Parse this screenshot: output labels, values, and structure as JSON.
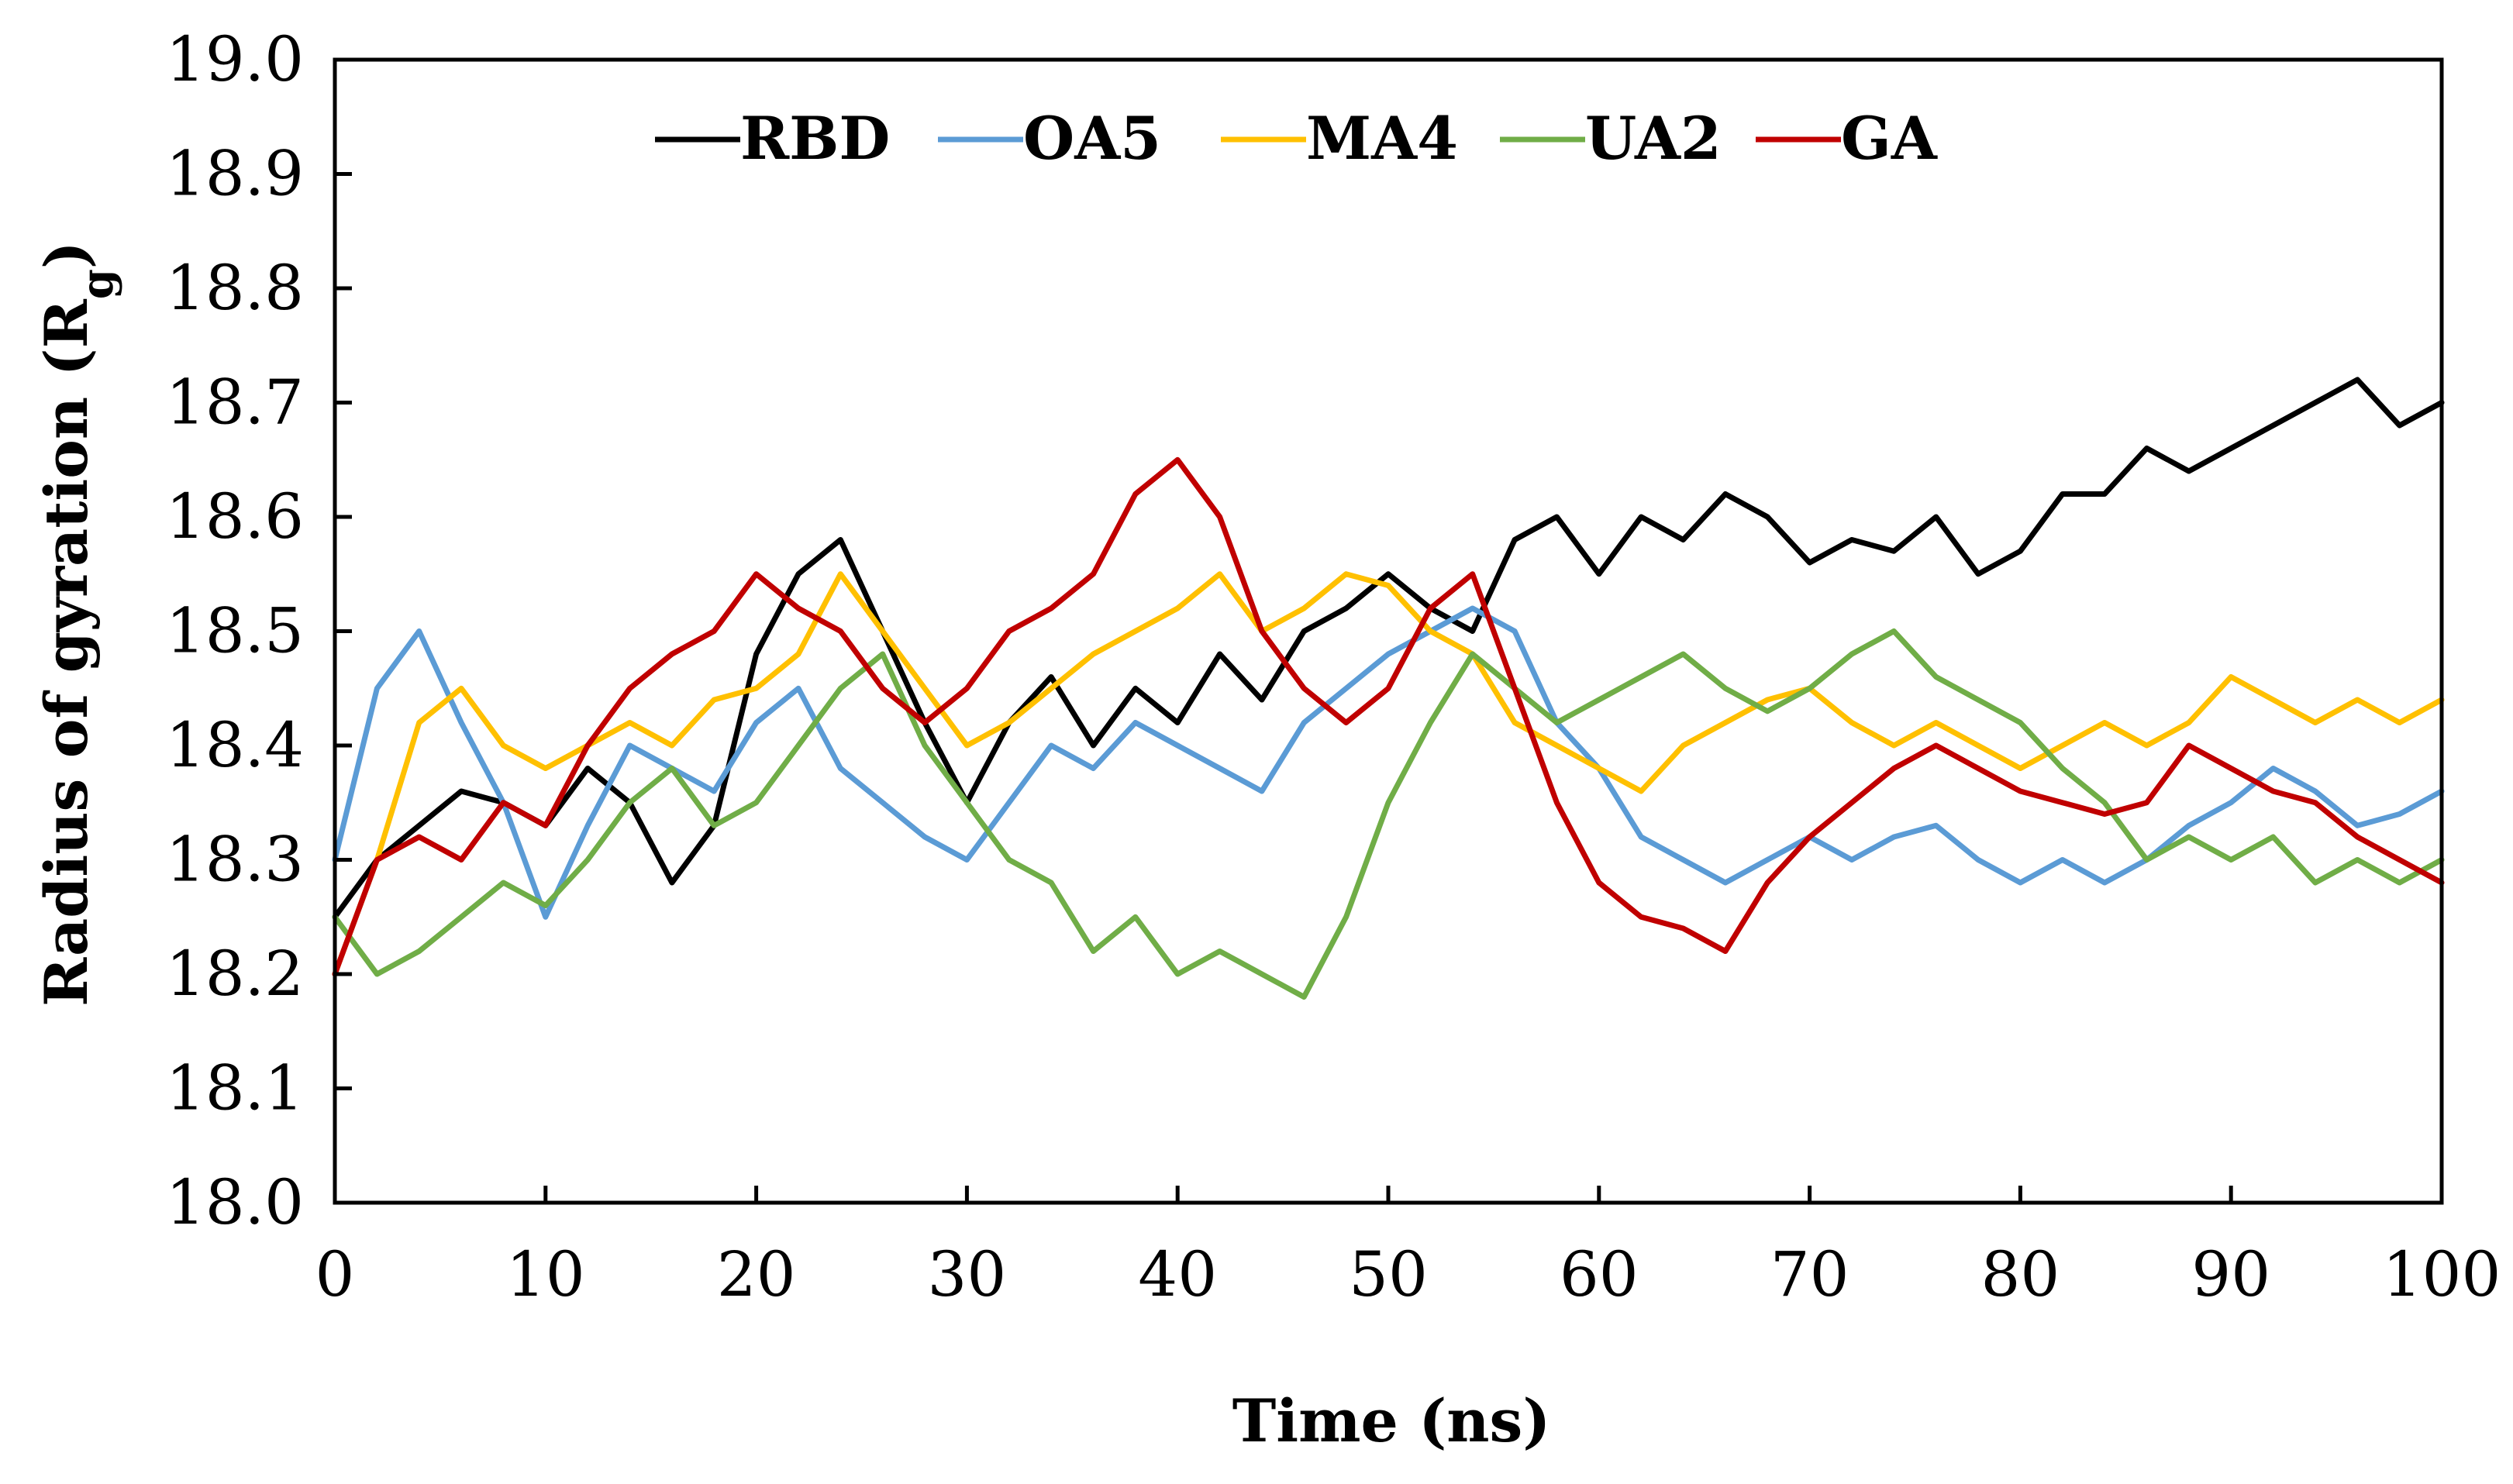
{
  "chart_data": {
    "type": "line",
    "title": "",
    "xlabel": "Time (ns)",
    "ylabel": "Radius of gyration (R",
    "ylabel_sub": "g",
    "ylabel_end": ")",
    "xlim": [
      0,
      100
    ],
    "ylim": [
      18.0,
      19.0
    ],
    "x_ticks": [
      0,
      10,
      20,
      30,
      40,
      50,
      60,
      70,
      80,
      90,
      100
    ],
    "y_ticks": [
      18.0,
      18.1,
      18.2,
      18.3,
      18.4,
      18.5,
      18.6,
      18.7,
      18.8,
      18.9,
      19.0
    ],
    "x_tick_labels": [
      "0",
      "10",
      "20",
      "30",
      "40",
      "50",
      "60",
      "70",
      "80",
      "90",
      "100"
    ],
    "y_tick_labels": [
      "18.0",
      "18.1",
      "18.2",
      "18.3",
      "18.4",
      "18.5",
      "18.6",
      "18.7",
      "18.8",
      "18.9",
      "19.0"
    ],
    "legend_position": "top-inside",
    "series": [
      {
        "name": "RBD",
        "color": "#000000",
        "x": [
          0,
          2,
          4,
          6,
          8,
          10,
          12,
          14,
          16,
          18,
          20,
          22,
          24,
          26,
          28,
          30,
          32,
          34,
          36,
          38,
          40,
          42,
          44,
          46,
          48,
          50,
          52,
          54,
          56,
          58,
          60,
          62,
          64,
          66,
          68,
          70,
          72,
          74,
          76,
          78,
          80,
          82,
          84,
          86,
          88,
          90,
          92,
          94,
          96,
          98,
          100
        ],
        "values": [
          18.25,
          18.3,
          18.33,
          18.36,
          18.35,
          18.33,
          18.38,
          18.35,
          18.28,
          18.33,
          18.48,
          18.55,
          18.58,
          18.5,
          18.42,
          18.35,
          18.42,
          18.46,
          18.4,
          18.45,
          18.42,
          18.48,
          18.44,
          18.5,
          18.52,
          18.55,
          18.52,
          18.5,
          18.58,
          18.6,
          18.55,
          18.6,
          18.58,
          18.62,
          18.6,
          18.56,
          18.58,
          18.57,
          18.6,
          18.55,
          18.57,
          18.62,
          18.62,
          18.66,
          18.64,
          18.66,
          18.68,
          18.7,
          18.72,
          18.68,
          18.7
        ]
      },
      {
        "name": "OA5",
        "color": "#5b9bd5",
        "x": [
          0,
          2,
          4,
          6,
          8,
          10,
          12,
          14,
          16,
          18,
          20,
          22,
          24,
          26,
          28,
          30,
          32,
          34,
          36,
          38,
          40,
          42,
          44,
          46,
          48,
          50,
          52,
          54,
          56,
          58,
          60,
          62,
          64,
          66,
          68,
          70,
          72,
          74,
          76,
          78,
          80,
          82,
          84,
          86,
          88,
          90,
          92,
          94,
          96,
          98,
          100
        ],
        "values": [
          18.3,
          18.45,
          18.5,
          18.42,
          18.35,
          18.25,
          18.33,
          18.4,
          18.38,
          18.36,
          18.42,
          18.45,
          18.38,
          18.35,
          18.32,
          18.3,
          18.35,
          18.4,
          18.38,
          18.42,
          18.4,
          18.38,
          18.36,
          18.42,
          18.45,
          18.48,
          18.5,
          18.52,
          18.5,
          18.42,
          18.38,
          18.32,
          18.3,
          18.28,
          18.3,
          18.32,
          18.3,
          18.32,
          18.33,
          18.3,
          18.28,
          18.3,
          18.28,
          18.3,
          18.33,
          18.35,
          18.38,
          18.36,
          18.33,
          18.34,
          18.36
        ]
      },
      {
        "name": "MA4",
        "color": "#ffc000",
        "x": [
          0,
          2,
          4,
          6,
          8,
          10,
          12,
          14,
          16,
          18,
          20,
          22,
          24,
          26,
          28,
          30,
          32,
          34,
          36,
          38,
          40,
          42,
          44,
          46,
          48,
          50,
          52,
          54,
          56,
          58,
          60,
          62,
          64,
          66,
          68,
          70,
          72,
          74,
          76,
          78,
          80,
          82,
          84,
          86,
          88,
          90,
          92,
          94,
          96,
          98,
          100
        ],
        "values": [
          18.2,
          18.3,
          18.42,
          18.45,
          18.4,
          18.38,
          18.4,
          18.42,
          18.4,
          18.44,
          18.45,
          18.48,
          18.55,
          18.5,
          18.45,
          18.4,
          18.42,
          18.45,
          18.48,
          18.5,
          18.52,
          18.55,
          18.5,
          18.52,
          18.55,
          18.54,
          18.5,
          18.48,
          18.42,
          18.4,
          18.38,
          18.36,
          18.4,
          18.42,
          18.44,
          18.45,
          18.42,
          18.4,
          18.42,
          18.4,
          18.38,
          18.4,
          18.42,
          18.4,
          18.42,
          18.46,
          18.44,
          18.42,
          18.44,
          18.42,
          18.44
        ]
      },
      {
        "name": "UA2",
        "color": "#70ad47",
        "x": [
          0,
          2,
          4,
          6,
          8,
          10,
          12,
          14,
          16,
          18,
          20,
          22,
          24,
          26,
          28,
          30,
          32,
          34,
          36,
          38,
          40,
          42,
          44,
          46,
          48,
          50,
          52,
          54,
          56,
          58,
          60,
          62,
          64,
          66,
          68,
          70,
          72,
          74,
          76,
          78,
          80,
          82,
          84,
          86,
          88,
          90,
          92,
          94,
          96,
          98,
          100
        ],
        "values": [
          18.25,
          18.2,
          18.22,
          18.25,
          18.28,
          18.26,
          18.3,
          18.35,
          18.38,
          18.33,
          18.35,
          18.4,
          18.45,
          18.48,
          18.4,
          18.35,
          18.3,
          18.28,
          18.22,
          18.25,
          18.2,
          18.22,
          18.2,
          18.18,
          18.25,
          18.35,
          18.42,
          18.48,
          18.45,
          18.42,
          18.44,
          18.46,
          18.48,
          18.45,
          18.43,
          18.45,
          18.48,
          18.5,
          18.46,
          18.44,
          18.42,
          18.38,
          18.35,
          18.3,
          18.32,
          18.3,
          18.32,
          18.28,
          18.3,
          18.28,
          18.3
        ]
      },
      {
        "name": "GA",
        "color": "#c00000",
        "x": [
          0,
          2,
          4,
          6,
          8,
          10,
          12,
          14,
          16,
          18,
          20,
          22,
          24,
          26,
          28,
          30,
          32,
          34,
          36,
          38,
          40,
          42,
          44,
          46,
          48,
          50,
          52,
          54,
          56,
          58,
          60,
          62,
          64,
          66,
          68,
          70,
          72,
          74,
          76,
          78,
          80,
          82,
          84,
          86,
          88,
          90,
          92,
          94,
          96,
          98,
          100
        ],
        "values": [
          18.2,
          18.3,
          18.32,
          18.3,
          18.35,
          18.33,
          18.4,
          18.45,
          18.48,
          18.5,
          18.55,
          18.52,
          18.5,
          18.45,
          18.42,
          18.45,
          18.5,
          18.52,
          18.55,
          18.62,
          18.65,
          18.6,
          18.5,
          18.45,
          18.42,
          18.45,
          18.52,
          18.55,
          18.45,
          18.35,
          18.28,
          18.25,
          18.24,
          18.22,
          18.28,
          18.32,
          18.35,
          18.38,
          18.4,
          18.38,
          18.36,
          18.35,
          18.34,
          18.35,
          18.4,
          18.38,
          18.36,
          18.35,
          18.32,
          18.3,
          18.28
        ]
      }
    ]
  }
}
